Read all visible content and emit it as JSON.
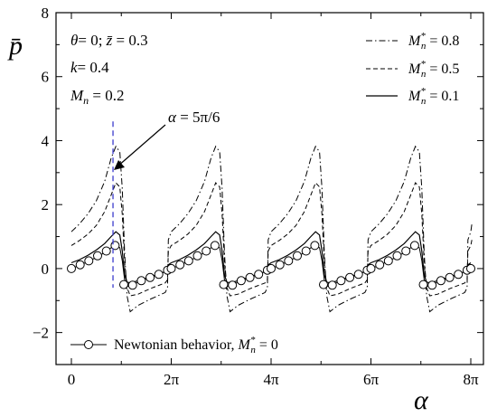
{
  "chart_data": {
    "type": "line",
    "xlabel": "α",
    "ylabel": "p̄",
    "xlim": [
      0,
      25.1327
    ],
    "ylim": [
      -3,
      8
    ],
    "x_ticks": [
      {
        "value": 0,
        "label": "0"
      },
      {
        "value": 6.2832,
        "label": "2π"
      },
      {
        "value": 12.5664,
        "label": "4π"
      },
      {
        "value": 18.8496,
        "label": "6π"
      },
      {
        "value": 25.1327,
        "label": "8π"
      }
    ],
    "y_ticks": [
      {
        "value": -2,
        "label": "−2"
      },
      {
        "value": 0,
        "label": "0"
      },
      {
        "value": 2,
        "label": "2"
      },
      {
        "value": 4,
        "label": "4"
      },
      {
        "value": 6,
        "label": "6"
      },
      {
        "value": 8,
        "label": "8"
      }
    ],
    "grid": false,
    "params_text": [
      "θ= 0; z̄ = 0.3",
      "k= 0.4",
      "Mn = 0.2"
    ],
    "params_parts": {
      "theta_sym": "θ",
      "theta_val": "= 0; ",
      "z_sym": "z̄",
      "z_val": " = 0.3",
      "k_sym": "k",
      "k_val": "= 0.4",
      "m_sym": "M",
      "m_sub": "n",
      "m_val": " = 0.2"
    },
    "annotation": {
      "text": "α = 5π/6",
      "sym": "α",
      "val": " = 5π/6",
      "x": 2.618,
      "y_top": 4.6,
      "y_bottom": -0.6
    },
    "legend_placement": "top-right",
    "series": [
      {
        "name": "M*n = 0.8",
        "label_sym": "M",
        "label_sub": "n",
        "label_sup": "*",
        "label_val": " = 0.8",
        "style": "dash-dot",
        "cycle": [
          [
            0.0,
            1.15
          ],
          [
            0.52,
            1.4
          ],
          [
            1.05,
            1.72
          ],
          [
            1.57,
            2.12
          ],
          [
            2.09,
            2.72
          ],
          [
            2.5,
            3.45
          ],
          [
            2.8,
            3.82
          ],
          [
            3.05,
            3.65
          ],
          [
            3.2,
            2.5
          ],
          [
            3.35,
            0.5
          ],
          [
            3.5,
            -0.85
          ],
          [
            3.7,
            -1.35
          ],
          [
            4.2,
            -1.15
          ],
          [
            5.0,
            -0.95
          ],
          [
            5.9,
            -0.75
          ],
          [
            6.05,
            -0.6
          ],
          [
            6.1,
            0.9
          ],
          [
            6.2832,
            1.15
          ]
        ]
      },
      {
        "name": "M*n = 0.5",
        "label_sym": "M",
        "label_sub": "n",
        "label_sup": "*",
        "label_val": " = 0.5",
        "style": "dashed",
        "cycle": [
          [
            0.0,
            0.72
          ],
          [
            0.52,
            0.88
          ],
          [
            1.05,
            1.08
          ],
          [
            1.57,
            1.35
          ],
          [
            2.09,
            1.78
          ],
          [
            2.5,
            2.3
          ],
          [
            2.8,
            2.68
          ],
          [
            3.05,
            2.55
          ],
          [
            3.2,
            1.7
          ],
          [
            3.35,
            0.2
          ],
          [
            3.5,
            -0.6
          ],
          [
            3.7,
            -0.85
          ],
          [
            4.2,
            -0.8
          ],
          [
            5.0,
            -0.62
          ],
          [
            5.9,
            -0.45
          ],
          [
            6.05,
            -0.35
          ],
          [
            6.1,
            0.55
          ],
          [
            6.2832,
            0.72
          ]
        ]
      },
      {
        "name": "M*n = 0.1",
        "label_sym": "M",
        "label_sub": "n",
        "label_sup": "*",
        "label_val": " = 0.1",
        "style": "solid",
        "cycle": [
          [
            0.0,
            0.18
          ],
          [
            0.52,
            0.28
          ],
          [
            1.05,
            0.42
          ],
          [
            1.57,
            0.58
          ],
          [
            2.09,
            0.78
          ],
          [
            2.5,
            1.0
          ],
          [
            2.8,
            1.15
          ],
          [
            3.05,
            1.05
          ],
          [
            3.2,
            0.55
          ],
          [
            3.35,
            -0.2
          ],
          [
            3.5,
            -0.42
          ],
          [
            3.7,
            -0.45
          ],
          [
            4.2,
            -0.38
          ],
          [
            5.0,
            -0.25
          ],
          [
            5.9,
            -0.1
          ],
          [
            6.05,
            -0.02
          ],
          [
            6.1,
            0.12
          ],
          [
            6.2832,
            0.18
          ]
        ]
      },
      {
        "name": "Newtonian behavior, M*n = 0",
        "label_text": "Newtonian behavior, ",
        "label_sym": "M",
        "label_sub": "n",
        "label_sup": "*",
        "label_val": " = 0",
        "style": "solid-circle-markers",
        "cycle": [
          [
            0.0,
            0.0
          ],
          [
            0.52,
            0.1
          ],
          [
            1.05,
            0.22
          ],
          [
            1.57,
            0.35
          ],
          [
            2.09,
            0.5
          ],
          [
            2.5,
            0.65
          ],
          [
            2.8,
            0.75
          ],
          [
            3.05,
            0.65
          ],
          [
            3.2,
            0.25
          ],
          [
            3.35,
            -0.35
          ],
          [
            3.5,
            -0.55
          ],
          [
            3.7,
            -0.55
          ],
          [
            4.2,
            -0.42
          ],
          [
            5.0,
            -0.28
          ],
          [
            5.9,
            -0.1
          ],
          [
            6.05,
            -0.05
          ],
          [
            6.1,
            -0.02
          ],
          [
            6.2832,
            0.0
          ]
        ],
        "markers": [
          [
            0.0,
            0.0
          ],
          [
            0.55,
            0.12
          ],
          [
            1.1,
            0.24
          ],
          [
            1.65,
            0.4
          ],
          [
            2.2,
            0.55
          ],
          [
            2.75,
            0.72
          ],
          [
            3.3,
            -0.5
          ],
          [
            3.85,
            -0.52
          ],
          [
            4.4,
            -0.38
          ],
          [
            4.95,
            -0.28
          ],
          [
            5.5,
            -0.18
          ],
          [
            6.05,
            -0.05
          ]
        ]
      }
    ]
  }
}
